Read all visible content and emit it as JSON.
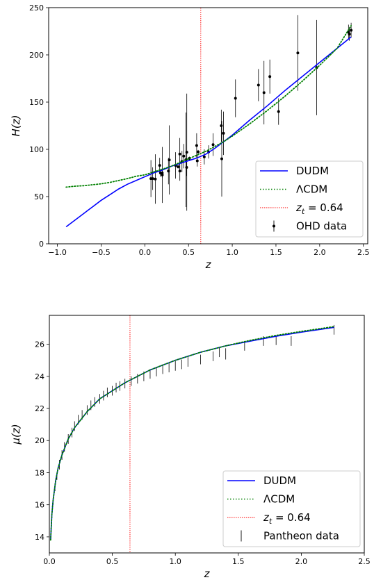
{
  "chart_data": [
    {
      "type": "line",
      "xlabel": "z",
      "ylabel": "H(z)",
      "xlim": [
        -1.1,
        2.55
      ],
      "ylim": [
        0,
        250
      ],
      "xticks": [
        -1.0,
        -0.5,
        0.0,
        0.5,
        1.0,
        1.5,
        2.0,
        2.5
      ],
      "xtick_labels": [
        "−1.0",
        "−0.5",
        "0.0",
        "0.5",
        "1.0",
        "1.5",
        "2.0",
        "2.5"
      ],
      "yticks": [
        0,
        50,
        100,
        150,
        200,
        250
      ],
      "ytick_labels": [
        "0",
        "50",
        "100",
        "150",
        "200",
        "250"
      ],
      "grid": false,
      "legend_position": "lower-right",
      "legend": {
        "dudm": "DUDM",
        "lcdm": "ΛCDM",
        "zt_prefix": "z",
        "zt_sub": "t",
        "zt_suffix": " = 0.64",
        "obs": "OHD data"
      },
      "colors": {
        "dudm": "#0000ff",
        "lcdm": "#008000",
        "zt": "#ff0000",
        "obs": "#000000"
      },
      "series": [
        {
          "key": "dudm",
          "style": "solid",
          "x": [
            -0.9,
            -0.8,
            -0.7,
            -0.6,
            -0.5,
            -0.4,
            -0.3,
            -0.2,
            -0.1,
            0.0,
            0.1,
            0.2,
            0.3,
            0.4,
            0.5,
            0.6,
            0.7,
            0.8,
            0.9,
            1.0,
            1.2,
            1.4,
            1.6,
            1.8,
            2.0,
            2.2,
            2.36
          ],
          "y": [
            18,
            25,
            32,
            39,
            46,
            52,
            58,
            63,
            67,
            71,
            75,
            78,
            82,
            85,
            88,
            91,
            95,
            101,
            108,
            115,
            131,
            146,
            162,
            177,
            192,
            207,
            219
          ]
        },
        {
          "key": "lcdm",
          "style": "dotted",
          "x": [
            -0.9,
            -0.8,
            -0.7,
            -0.6,
            -0.5,
            -0.4,
            -0.3,
            -0.2,
            -0.1,
            0.0,
            0.1,
            0.2,
            0.3,
            0.4,
            0.5,
            0.6,
            0.7,
            0.8,
            0.9,
            1.0,
            1.2,
            1.4,
            1.6,
            1.8,
            2.0,
            2.2,
            2.36
          ],
          "y": [
            60,
            61,
            61.5,
            62.5,
            63.5,
            65,
            67,
            69,
            71.5,
            73,
            76,
            79,
            82,
            86,
            90,
            94,
            98,
            103,
            108,
            114,
            127,
            141,
            156,
            172,
            189,
            207,
            231
          ]
        }
      ],
      "zt": 0.64,
      "observations": {
        "key": "obs",
        "z": [
          0.07,
          0.09,
          0.12,
          0.17,
          0.179,
          0.199,
          0.2,
          0.27,
          0.28,
          0.352,
          0.38,
          0.4,
          0.4004,
          0.425,
          0.445,
          0.47,
          0.4783,
          0.48,
          0.51,
          0.593,
          0.6,
          0.61,
          0.68,
          0.73,
          0.781,
          0.875,
          0.88,
          0.9,
          1.037,
          1.3,
          1.363,
          1.43,
          1.53,
          1.75,
          1.965,
          2.33,
          2.34,
          2.36
        ],
        "H": [
          69,
          69,
          68.6,
          83,
          75,
          75,
          72.9,
          77,
          88.8,
          83,
          81.5,
          95,
          77,
          87.1,
          92.8,
          89,
          80.9,
          97,
          90.4,
          104,
          87.9,
          97.3,
          92,
          97.3,
          105,
          125,
          90,
          117,
          154,
          168,
          160,
          177,
          140,
          202,
          186.5,
          224,
          222,
          226
        ],
        "err": [
          19.6,
          12,
          26.2,
          8,
          4,
          5,
          29.6,
          14,
          36.6,
          14,
          1.9,
          17,
          10.2,
          11.2,
          12.9,
          50,
          9,
          62,
          1.9,
          13,
          6.1,
          2.1,
          8,
          7,
          12,
          17,
          40,
          23,
          20,
          17,
          33.6,
          18,
          14,
          40,
          50.4,
          8,
          7,
          8
        ]
      }
    },
    {
      "type": "line",
      "xlabel": "z",
      "ylabel": "μ(z)",
      "xlim": [
        0.0,
        2.5
      ],
      "ylim": [
        13.0,
        27.8
      ],
      "xticks": [
        0.0,
        0.5,
        1.0,
        1.5,
        2.0,
        2.5
      ],
      "xtick_labels": [
        "0.0",
        "0.5",
        "1.0",
        "1.5",
        "2.0",
        "2.5"
      ],
      "yticks": [
        14,
        16,
        18,
        20,
        22,
        24,
        26
      ],
      "ytick_labels": [
        "14",
        "16",
        "18",
        "20",
        "22",
        "24",
        "26"
      ],
      "grid": false,
      "legend_position": "lower-right",
      "legend": {
        "dudm": "DUDM",
        "lcdm": "ΛCDM",
        "zt_prefix": "z",
        "zt_sub": "t",
        "zt_suffix": " = 0.64",
        "obs": "Pantheon data"
      },
      "colors": {
        "dudm": "#0000ff",
        "lcdm": "#008000",
        "zt": "#ff0000",
        "obs": "#000000"
      },
      "series": [
        {
          "key": "dudm",
          "style": "solid",
          "x": [
            0.01,
            0.02,
            0.03,
            0.05,
            0.07,
            0.1,
            0.15,
            0.2,
            0.3,
            0.4,
            0.5,
            0.6,
            0.7,
            0.8,
            1.0,
            1.2,
            1.4,
            1.6,
            1.8,
            2.0,
            2.26
          ],
          "y": [
            13.8,
            15.4,
            16.3,
            17.5,
            18.3,
            19.1,
            20.1,
            20.8,
            21.8,
            22.6,
            23.1,
            23.6,
            24.0,
            24.4,
            25.0,
            25.5,
            25.9,
            26.2,
            26.5,
            26.75,
            27.05
          ]
        },
        {
          "key": "lcdm",
          "style": "dotted",
          "x": [
            0.01,
            0.02,
            0.03,
            0.05,
            0.07,
            0.1,
            0.15,
            0.2,
            0.3,
            0.4,
            0.5,
            0.6,
            0.7,
            0.8,
            1.0,
            1.2,
            1.4,
            1.6,
            1.8,
            2.0,
            2.26
          ],
          "y": [
            13.8,
            15.4,
            16.3,
            17.5,
            18.3,
            19.1,
            20.1,
            20.8,
            21.8,
            22.6,
            23.1,
            23.6,
            24.0,
            24.4,
            25.0,
            25.5,
            25.9,
            26.25,
            26.55,
            26.8,
            27.1
          ]
        }
      ],
      "zt": 0.64,
      "observations": {
        "key": "obs",
        "z": [
          0.012,
          0.02,
          0.03,
          0.045,
          0.06,
          0.08,
          0.1,
          0.12,
          0.15,
          0.18,
          0.2,
          0.23,
          0.26,
          0.3,
          0.33,
          0.36,
          0.4,
          0.43,
          0.46,
          0.5,
          0.53,
          0.56,
          0.6,
          0.65,
          0.7,
          0.75,
          0.8,
          0.85,
          0.9,
          0.95,
          1.0,
          1.05,
          1.1,
          1.2,
          1.3,
          1.35,
          1.4,
          1.55,
          1.7,
          1.8,
          1.92,
          2.26
        ],
        "mu": [
          14.0,
          15.3,
          16.2,
          17.1,
          17.8,
          18.5,
          19.1,
          19.6,
          20.1,
          20.5,
          20.9,
          21.3,
          21.6,
          21.9,
          22.2,
          22.4,
          22.6,
          22.8,
          23.0,
          23.1,
          23.3,
          23.4,
          23.55,
          23.7,
          23.85,
          24.0,
          24.15,
          24.3,
          24.45,
          24.55,
          24.65,
          24.75,
          24.9,
          25.05,
          25.25,
          25.5,
          25.4,
          25.9,
          26.2,
          26.25,
          26.2,
          26.9
        ],
        "err": [
          0.2,
          0.2,
          0.2,
          0.25,
          0.25,
          0.3,
          0.3,
          0.3,
          0.3,
          0.3,
          0.3,
          0.3,
          0.3,
          0.3,
          0.3,
          0.3,
          0.3,
          0.3,
          0.3,
          0.3,
          0.3,
          0.3,
          0.3,
          0.3,
          0.3,
          0.3,
          0.3,
          0.3,
          0.3,
          0.3,
          0.3,
          0.3,
          0.3,
          0.3,
          0.3,
          0.3,
          0.35,
          0.3,
          0.3,
          0.3,
          0.3,
          0.3
        ]
      }
    }
  ]
}
